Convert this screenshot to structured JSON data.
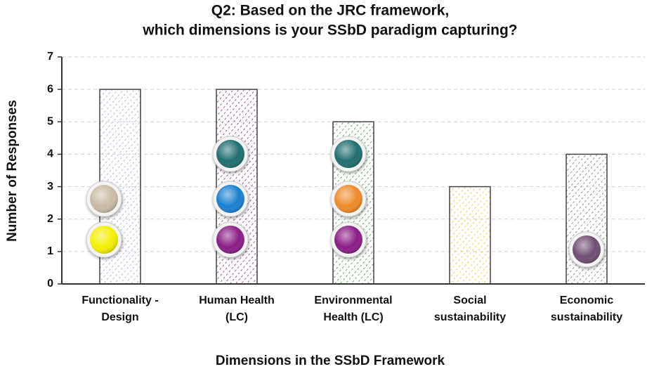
{
  "chart_data": {
    "type": "bar",
    "title": [
      "Q2: Based on the JRC framework,",
      "which dimensions is your SSbD paradigm capturing?"
    ],
    "categories": [
      [
        "Functionality -",
        "Design"
      ],
      [
        "Human Health",
        "(LC)"
      ],
      [
        "Environmental",
        "Health (LC)"
      ],
      [
        "Social",
        "sustainability"
      ],
      [
        "Economic",
        "sustainability"
      ]
    ],
    "values": [
      6,
      6,
      5,
      3,
      4
    ],
    "colors": [
      "#a7a2d9",
      "#8c2c7d",
      "#3c9a3c",
      "#f0c030",
      "#777777"
    ],
    "ylim": [
      0,
      7
    ],
    "yticks": [
      0,
      1,
      2,
      3,
      4,
      5,
      6,
      7
    ],
    "grid": true,
    "xlabel": "Dimensions in the SSbD Framework",
    "ylabel": "Number of Responses"
  }
}
